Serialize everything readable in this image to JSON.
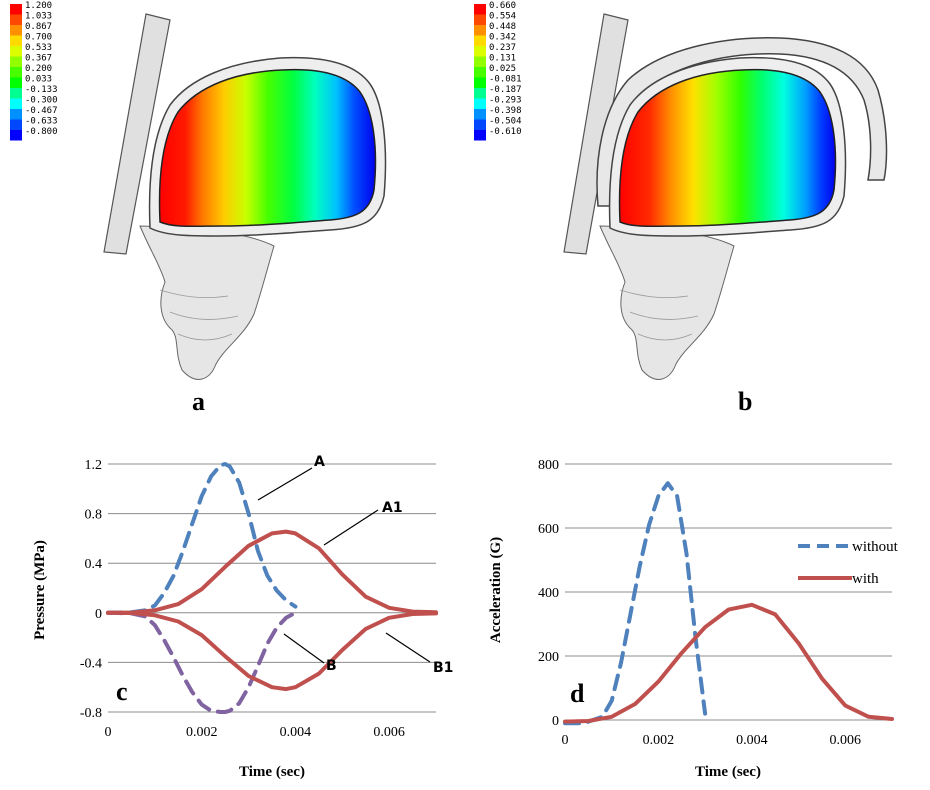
{
  "panels": {
    "a": {
      "label": "a",
      "legend": [
        "1.200",
        "1.033",
        "0.867",
        "0.700",
        "0.533",
        "0.367",
        "0.200",
        "0.033",
        "-0.133",
        "-0.300",
        "-0.467",
        "-0.633",
        "-0.800"
      ]
    },
    "b": {
      "label": "b",
      "legend": [
        "0.660",
        "0.554",
        "0.448",
        "0.342",
        "0.237",
        "0.131",
        "0.025",
        "-0.081",
        "-0.187",
        "-0.293",
        "-0.398",
        "-0.504",
        "-0.610"
      ]
    },
    "legend_colors": [
      "#ff0000",
      "#ff4800",
      "#ff9100",
      "#ffdb00",
      "#dbff00",
      "#91ff00",
      "#48ff00",
      "#00ff00",
      "#00ff91",
      "#00ffff",
      "#0091ff",
      "#0048ff",
      "#0000ff"
    ]
  },
  "chart_data": [
    {
      "type": "line",
      "panel_label": "c",
      "xlabel": "Time (sec)",
      "ylabel": "Pressure (MPa)",
      "xlim": [
        0,
        0.007
      ],
      "ylim": [
        -0.8,
        1.2
      ],
      "xticks": [
        "0",
        "0.002",
        "0.004",
        "0.006"
      ],
      "yticks": [
        "1.2",
        "0.8",
        "0.4",
        "0",
        "-0.4",
        "-0.8"
      ],
      "grid": "horizontal",
      "series": [
        {
          "name": "A",
          "color": "#4f81bd",
          "dash": true,
          "x": [
            0,
            0.0005,
            0.0008,
            0.001,
            0.0012,
            0.0014,
            0.0016,
            0.0018,
            0.002,
            0.0022,
            0.0024,
            0.0025,
            0.0026,
            0.0028,
            0.003,
            0.0032,
            0.0034,
            0.0036,
            0.0038,
            0.004
          ],
          "y": [
            0,
            0.005,
            0.02,
            0.06,
            0.16,
            0.3,
            0.5,
            0.72,
            0.94,
            1.1,
            1.19,
            1.2,
            1.18,
            1.05,
            0.8,
            0.5,
            0.3,
            0.18,
            0.1,
            0.05
          ]
        },
        {
          "name": "A1",
          "color": "#c0504d",
          "dash": false,
          "x": [
            0,
            0.0005,
            0.001,
            0.0015,
            0.002,
            0.0025,
            0.003,
            0.0035,
            0.0038,
            0.004,
            0.0045,
            0.005,
            0.0055,
            0.006,
            0.0065,
            0.007
          ],
          "y": [
            0,
            0.002,
            0.02,
            0.07,
            0.19,
            0.37,
            0.54,
            0.64,
            0.655,
            0.64,
            0.52,
            0.31,
            0.13,
            0.04,
            0.01,
            0.005
          ]
        },
        {
          "name": "B",
          "color": "#8064a2",
          "dash": true,
          "x": [
            0,
            0.0005,
            0.0008,
            0.001,
            0.0012,
            0.0014,
            0.0016,
            0.0018,
            0.002,
            0.0022,
            0.0024,
            0.0025,
            0.0026,
            0.0028,
            0.003,
            0.0032,
            0.0034,
            0.0036,
            0.0038,
            0.004
          ],
          "y": [
            0,
            -0.005,
            -0.03,
            -0.1,
            -0.22,
            -0.36,
            -0.51,
            -0.64,
            -0.74,
            -0.79,
            -0.8,
            -0.8,
            -0.79,
            -0.73,
            -0.6,
            -0.43,
            -0.25,
            -0.12,
            -0.04,
            0
          ]
        },
        {
          "name": "B1",
          "color": "#c0504d",
          "dash": false,
          "x": [
            0,
            0.0005,
            0.001,
            0.0015,
            0.002,
            0.0025,
            0.003,
            0.0035,
            0.0038,
            0.004,
            0.0045,
            0.005,
            0.0055,
            0.006,
            0.0065,
            0.007
          ],
          "y": [
            0,
            -0.002,
            -0.02,
            -0.07,
            -0.18,
            -0.35,
            -0.51,
            -0.6,
            -0.615,
            -0.6,
            -0.49,
            -0.3,
            -0.13,
            -0.04,
            -0.01,
            -0.005
          ]
        }
      ],
      "callouts": [
        "A",
        "A1",
        "B",
        "B1"
      ]
    },
    {
      "type": "line",
      "panel_label": "d",
      "xlabel": "Time (sec)",
      "ylabel": "Acceleration (G)",
      "xlim": [
        0,
        0.007
      ],
      "ylim": [
        0,
        800
      ],
      "xticks": [
        "0",
        "0.002",
        "0.004",
        "0.006"
      ],
      "yticks": [
        "800",
        "600",
        "400",
        "200",
        "0"
      ],
      "grid": "horizontal",
      "legend_position": "right",
      "series": [
        {
          "name": "without",
          "color": "#4f81bd",
          "dash": true,
          "x": [
            0,
            0.0004,
            0.0008,
            0.001,
            0.0012,
            0.0014,
            0.0016,
            0.0018,
            0.002,
            0.0022,
            0.0024,
            0.0026,
            0.0028,
            0.003
          ],
          "y": [
            -10,
            -10,
            10,
            60,
            180,
            330,
            480,
            610,
            700,
            740,
            700,
            520,
            250,
            20
          ]
        },
        {
          "name": "with",
          "color": "#c0504d",
          "dash": false,
          "x": [
            0,
            0.0005,
            0.001,
            0.0015,
            0.002,
            0.0025,
            0.003,
            0.0035,
            0.004,
            0.0045,
            0.005,
            0.0055,
            0.006,
            0.0065,
            0.007
          ],
          "y": [
            -5,
            -3,
            10,
            50,
            120,
            210,
            290,
            345,
            360,
            330,
            240,
            130,
            45,
            10,
            3
          ]
        }
      ]
    }
  ]
}
